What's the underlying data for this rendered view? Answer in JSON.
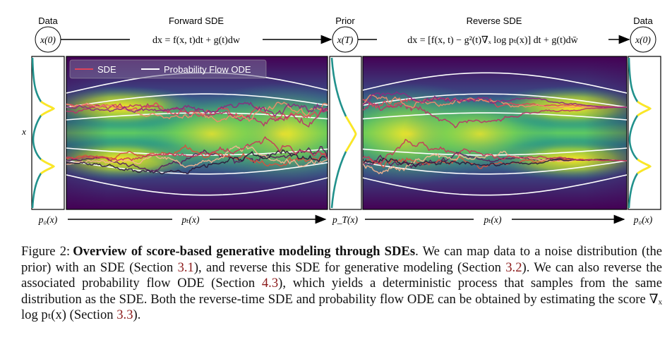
{
  "header": {
    "data_left": "Data",
    "forward_sde": "Forward SDE",
    "prior": "Prior",
    "reverse_sde": "Reverse SDE",
    "data_right": "Data"
  },
  "nodes": {
    "x0_left": "x(0)",
    "xT": "x(T)",
    "x0_right": "x(0)"
  },
  "equations": {
    "forward": "dx = f(x, t)dt + g(t)dw",
    "reverse": "dx = [f(x, t) − g²(t)∇ₓ log pₜ(x)] dt + g(t)dw̄"
  },
  "legend": {
    "sde": "SDE",
    "ode": "Probability Flow ODE"
  },
  "axis": {
    "y_label": "x"
  },
  "bottom": {
    "p0_left": "p₀(x)",
    "pt_forward": "pₜ(x)",
    "pT": "p_T(x)",
    "pt_reverse": "pₜ(x)",
    "p0_right": "p₀(x)"
  },
  "colors": {
    "viridis_dark": "#440154",
    "viridis_mid": "#21918c",
    "viridis_bright": "#fde725",
    "ode_line": "#ffffff",
    "sde_accent": "#e0435a"
  },
  "caption": {
    "label": "Figure 2:",
    "title": "Overview of score-based generative modeling through SDEs",
    "t1": ". We can map data to a noise distribution (the prior) with an SDE (Section ",
    "r1": "3.1",
    "t2": "), and reverse this SDE for generative modeling (Section ",
    "r2": "3.2",
    "t3": "). We can also reverse the associated probability flow ODE (Section ",
    "r3": "4.3",
    "t4": "), which yields a deterministic process that samples from the same distribution as the SDE. Both the reverse-time SDE and probability flow ODE can be obtained by estimating the score ",
    "math": "∇ₓ log pₜ(x)",
    "t5": " (Section ",
    "r4": "3.3",
    "t6": ")."
  }
}
